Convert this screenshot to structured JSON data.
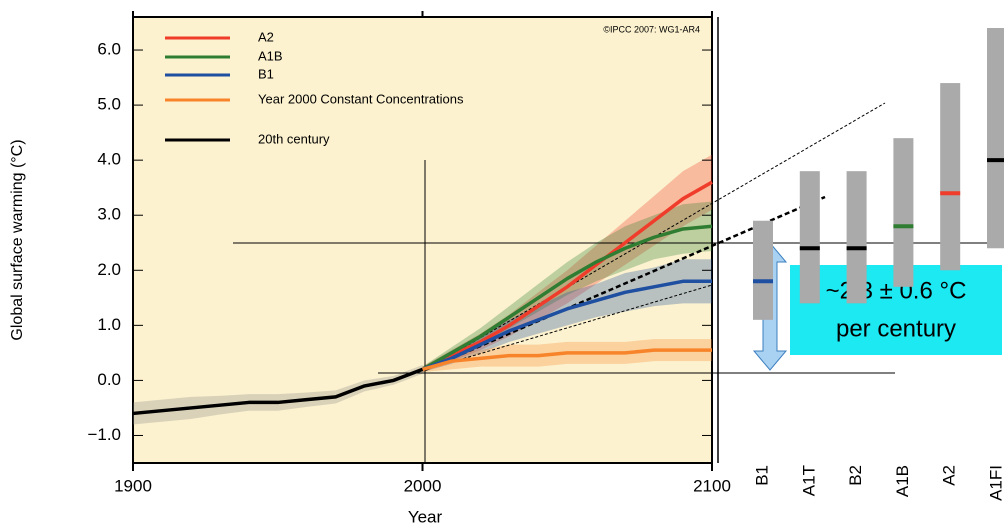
{
  "chart_data": [
    {
      "type": "line",
      "x_label": "Year",
      "y_label": "Global surface warming (°C)",
      "annotation": "©IPCC 2007: WG1-AR4",
      "callout": [
        "~2.3 ± 0.6 °C",
        "per century"
      ],
      "xlim": [
        1900,
        2100
      ],
      "xticks": [
        1900,
        2000,
        2100
      ],
      "ylim": [
        -1.5,
        6.6
      ],
      "yticks": [
        {
          "value": -1,
          "label": "−1.0"
        },
        {
          "value": 0,
          "label": "0.0"
        },
        {
          "value": 1,
          "label": "1.0"
        },
        {
          "value": 2,
          "label": "2.0"
        },
        {
          "value": 3,
          "label": "3.0"
        },
        {
          "value": 4,
          "label": "4.0"
        },
        {
          "value": 5,
          "label": "5.0"
        },
        {
          "value": 6,
          "label": "6.0"
        }
      ],
      "series": [
        {
          "name": "A2",
          "color": "#f03c2a",
          "x": [
            2000,
            2010,
            2020,
            2030,
            2040,
            2050,
            2060,
            2070,
            2080,
            2090,
            2100
          ],
          "values": [
            0.2,
            0.45,
            0.7,
            1.0,
            1.35,
            1.7,
            2.1,
            2.5,
            2.9,
            3.3,
            3.6
          ],
          "low": [
            0.15,
            0.35,
            0.55,
            0.8,
            1.1,
            1.4,
            1.75,
            2.1,
            2.45,
            2.8,
            3.1
          ],
          "high": [
            0.25,
            0.55,
            0.85,
            1.2,
            1.6,
            2.0,
            2.45,
            2.9,
            3.35,
            3.8,
            4.1
          ]
        },
        {
          "name": "A1B",
          "color": "#2e7d32",
          "x": [
            2000,
            2010,
            2020,
            2030,
            2040,
            2050,
            2060,
            2070,
            2080,
            2090,
            2100
          ],
          "values": [
            0.2,
            0.5,
            0.8,
            1.15,
            1.5,
            1.85,
            2.15,
            2.4,
            2.6,
            2.75,
            2.8
          ],
          "low": [
            0.15,
            0.4,
            0.65,
            0.95,
            1.25,
            1.55,
            1.8,
            2.0,
            2.2,
            2.3,
            2.35
          ],
          "high": [
            0.25,
            0.6,
            0.95,
            1.35,
            1.75,
            2.15,
            2.5,
            2.8,
            3.0,
            3.2,
            3.25
          ]
        },
        {
          "name": "B1",
          "color": "#1f4fa0",
          "x": [
            2000,
            2010,
            2020,
            2030,
            2040,
            2050,
            2060,
            2070,
            2080,
            2090,
            2100
          ],
          "values": [
            0.2,
            0.4,
            0.65,
            0.9,
            1.1,
            1.3,
            1.45,
            1.6,
            1.7,
            1.8,
            1.8
          ],
          "low": [
            0.15,
            0.3,
            0.5,
            0.7,
            0.85,
            1.0,
            1.15,
            1.25,
            1.35,
            1.4,
            1.4
          ],
          "high": [
            0.25,
            0.5,
            0.8,
            1.1,
            1.35,
            1.6,
            1.75,
            1.95,
            2.05,
            2.2,
            2.2
          ]
        },
        {
          "name": "Year 2000 Constant Concentrations",
          "color": "#f7842a",
          "x": [
            2000,
            2010,
            2020,
            2030,
            2040,
            2050,
            2060,
            2070,
            2080,
            2090,
            2100
          ],
          "values": [
            0.2,
            0.35,
            0.4,
            0.45,
            0.45,
            0.5,
            0.5,
            0.5,
            0.55,
            0.55,
            0.55
          ],
          "low": [
            0.15,
            0.2,
            0.25,
            0.25,
            0.25,
            0.3,
            0.3,
            0.3,
            0.35,
            0.35,
            0.35
          ],
          "high": [
            0.25,
            0.5,
            0.55,
            0.65,
            0.65,
            0.7,
            0.7,
            0.7,
            0.75,
            0.75,
            0.75
          ]
        },
        {
          "name": "20th century",
          "color": "#000000",
          "x": [
            1900,
            1910,
            1920,
            1930,
            1940,
            1950,
            1960,
            1970,
            1980,
            1990,
            2000
          ],
          "values": [
            -0.6,
            -0.55,
            -0.5,
            -0.45,
            -0.4,
            -0.4,
            -0.35,
            -0.3,
            -0.1,
            0.0,
            0.2
          ],
          "low": [
            -0.8,
            -0.75,
            -0.7,
            -0.62,
            -0.55,
            -0.55,
            -0.48,
            -0.42,
            -0.2,
            -0.08,
            0.12
          ],
          "high": [
            -0.4,
            -0.35,
            -0.3,
            -0.28,
            -0.25,
            -0.25,
            -0.22,
            -0.18,
            0.0,
            0.08,
            0.28
          ]
        }
      ]
    },
    {
      "type": "range",
      "ylim": [
        -1.5,
        6.6
      ],
      "categories": [
        "B1",
        "A1T",
        "B2",
        "A1B",
        "A2",
        "A1FI"
      ],
      "label_colors": [
        "#1f4fa0",
        "#000000",
        "#000000",
        "#2e7d32",
        "#f03c2a",
        "#000000"
      ],
      "bar_color": "#aaaaaa",
      "low": [
        1.1,
        1.4,
        1.4,
        1.7,
        2.0,
        2.4
      ],
      "high": [
        2.9,
        3.8,
        3.8,
        4.4,
        5.4,
        6.4
      ],
      "best": [
        1.8,
        2.4,
        2.4,
        2.8,
        3.4,
        4.0
      ]
    }
  ]
}
